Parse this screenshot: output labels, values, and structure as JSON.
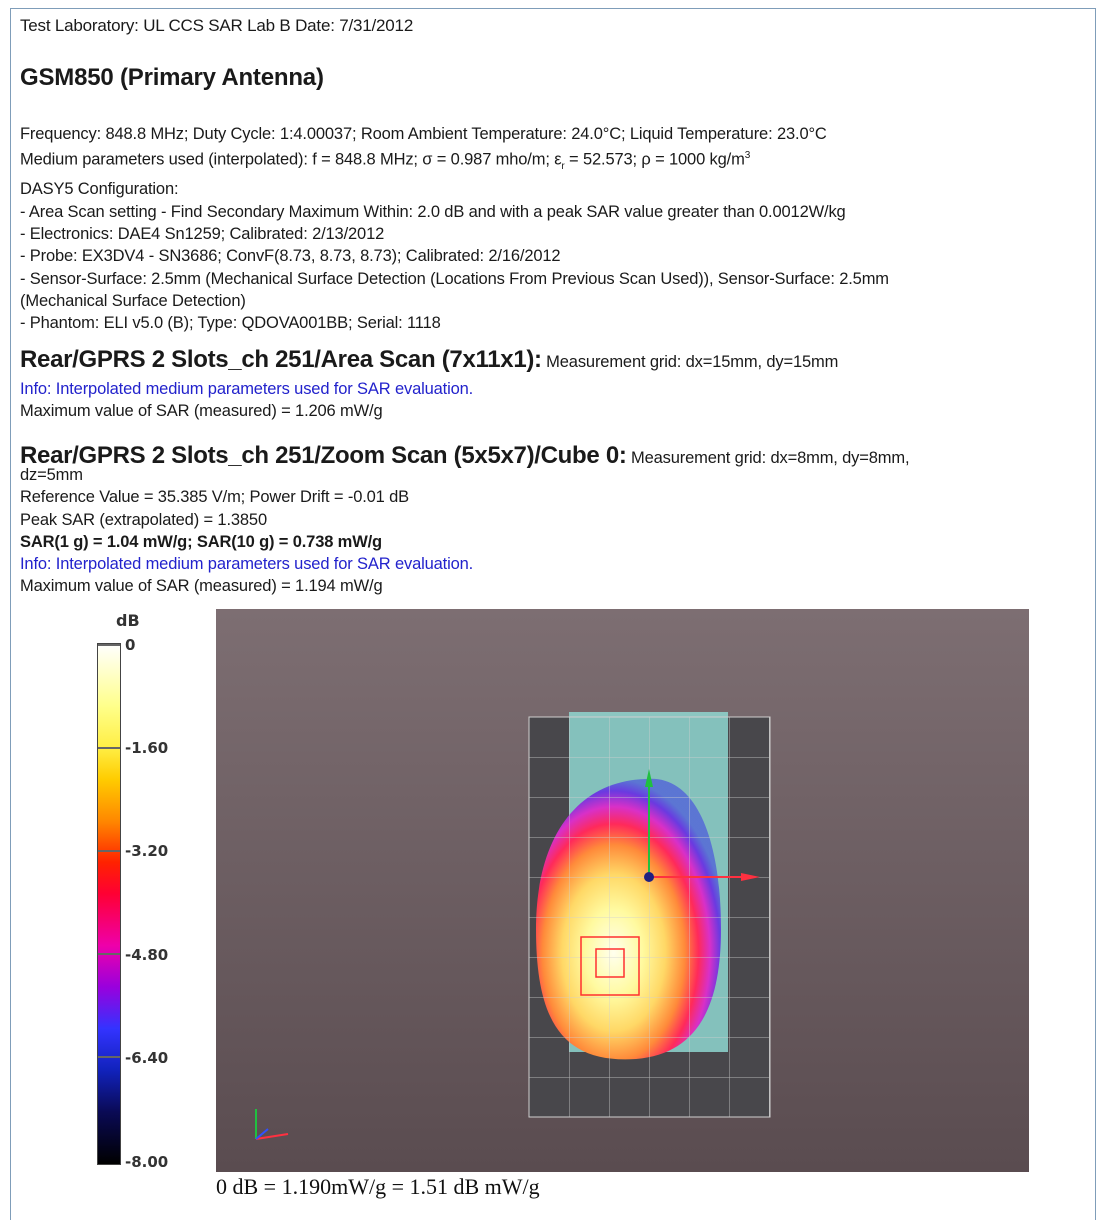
{
  "header": {
    "lab_line": "Test Laboratory: UL CCS SAR Lab B Date: 7/31/2012",
    "title": "GSM850 (Primary Antenna)"
  },
  "config": {
    "line1": "Frequency: 848.8 MHz; Duty Cycle: 1:4.00037; Room Ambient Temperature: 24.0°C; Liquid Temperature: 23.0°C",
    "line2_a": "Medium parameters used (interpolated): f = 848.8 MHz; σ = 0.987 mho/m; ε",
    "line2_sub": "r",
    "line2_b": " = 52.573; ρ = 1000 kg/m",
    "line2_sup": "3",
    "line3": "DASY5 Configuration:",
    "line4": "- Area Scan setting - Find Secondary Maximum Within: 2.0 dB and with a peak SAR value greater than 0.0012W/kg",
    "line5": "- Electronics: DAE4 Sn1259; Calibrated: 2/13/2012",
    "line6": "- Probe: EX3DV4 - SN3686; ConvF(8.73, 8.73, 8.73); Calibrated: 2/16/2012",
    "line7": "- Sensor-Surface: 2.5mm (Mechanical Surface Detection (Locations From Previous Scan Used)), Sensor-Surface: 2.5mm",
    "line8": "(Mechanical Surface Detection)",
    "line9": "- Phantom: ELI v5.0 (B); Type: QDOVA001BB; Serial: 1118"
  },
  "area_scan": {
    "title": "Rear/GPRS 2 Slots_ch 251/Area Scan (7x11x1):",
    "grid": " Measurement grid: dx=15mm, dy=15mm",
    "info": "Info: Interpolated medium parameters used for SAR evaluation.",
    "max": "Maximum value of SAR (measured) = 1.206 mW/g"
  },
  "zoom_scan": {
    "title": "Rear/GPRS 2 Slots_ch 251/Zoom Scan (5x5x7)/Cube 0:",
    "grid": " Measurement grid: dx=8mm, dy=8mm,",
    "grid2": "dz=5mm",
    "ref": "Reference Value = 35.385 V/m; Power Drift = -0.01 dB",
    "peak": "Peak SAR (extrapolated) = 1.3850",
    "sar": "SAR(1 g) = 1.04 mW/g; SAR(10 g) = 0.738 mW/g",
    "info": "Info: Interpolated medium parameters used for SAR evaluation.",
    "max": "Maximum value of SAR (measured) = 1.194 mW/g"
  },
  "colorbar": {
    "unit": "dB",
    "labels": [
      "0",
      "-1.60",
      "-3.20",
      "-4.80",
      "-6.40",
      "-8.00"
    ]
  },
  "caption": "0 dB = 1.190mW/g = 1.51 dB mW/g"
}
